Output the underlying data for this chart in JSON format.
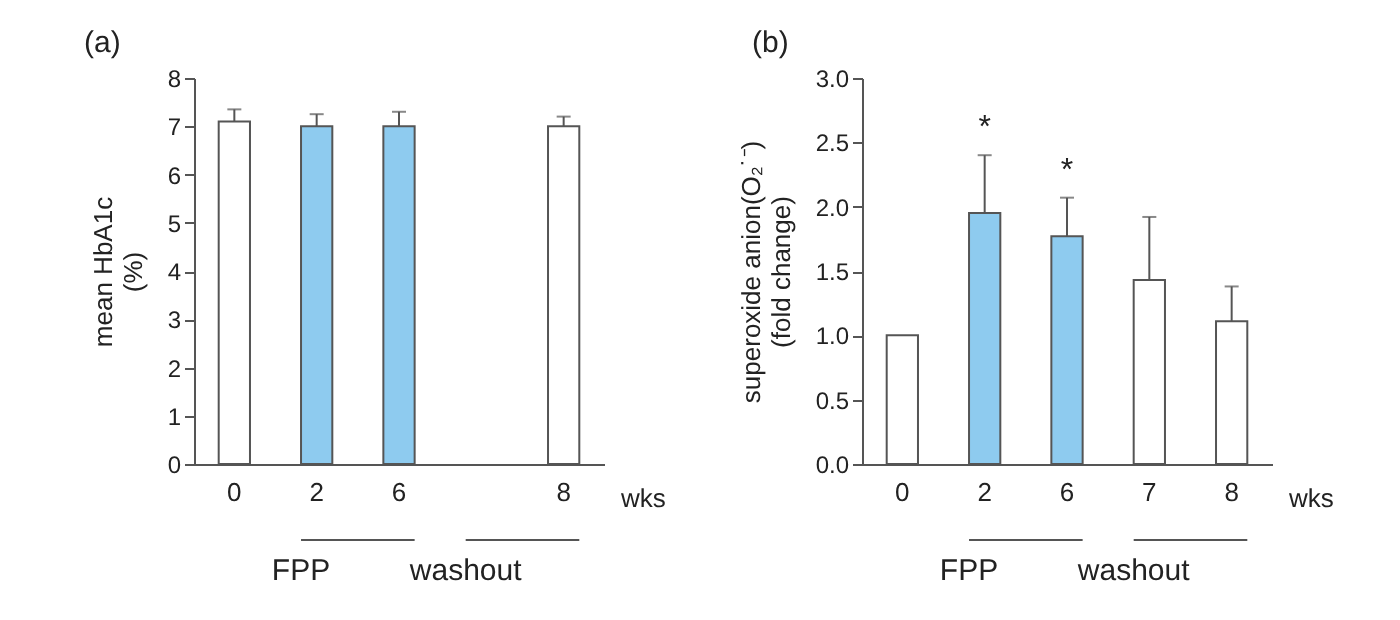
{
  "chart_data": [
    {
      "type": "bar",
      "title": "(a)",
      "xlabel": "wks",
      "ylabel": "mean HbA1c\n(%)",
      "categories": [
        "0",
        "2",
        "6",
        null,
        "8"
      ],
      "values": [
        7.1,
        7.0,
        7.0,
        null,
        7.0
      ],
      "colors": [
        "#ffffff",
        "#8ecbef",
        "#8ecbef",
        "#ffffff",
        "#ffffff"
      ],
      "errors": [
        [
          7.1,
          7.35
        ],
        [
          7.0,
          7.25
        ],
        [
          7.0,
          7.3
        ],
        null,
        [
          7.0,
          7.2
        ]
      ],
      "ylim": [
        0,
        8
      ],
      "yticks": [
        0,
        1,
        2,
        3,
        4,
        5,
        6,
        7,
        8
      ],
      "grid": false,
      "annotations": [
        "FPP",
        "washout"
      ]
    },
    {
      "type": "bar",
      "title": "(b)",
      "xlabel": "wks",
      "ylabel": "superoxide anion(O₂˙⁻)\n(fold change)",
      "categories": [
        "0",
        "2",
        "6",
        "7",
        "8"
      ],
      "values": [
        1.0,
        1.95,
        1.77,
        1.43,
        1.11
      ],
      "colors": [
        "#ffffff",
        "#8ecbef",
        "#8ecbef",
        "#ffffff",
        "#ffffff"
      ],
      "errors": [
        null,
        [
          1.95,
          2.4
        ],
        [
          1.77,
          2.07
        ],
        [
          1.43,
          1.92
        ],
        [
          1.11,
          1.38
        ]
      ],
      "ylim": [
        0,
        3.0
      ],
      "yticks": [
        {
          "value": 0,
          "label": "0.0"
        },
        {
          "value": 0.5,
          "label": "0.5"
        },
        {
          "value": 1,
          "label": "1.0"
        },
        {
          "value": 1.5,
          "label": "1.5"
        },
        {
          "value": 2,
          "label": "2.0"
        },
        {
          "value": 2.5,
          "label": "2.5"
        },
        {
          "value": 3,
          "label": "3.0"
        }
      ],
      "grid": false,
      "annotations": [
        "FPP",
        "washout",
        "*",
        "*"
      ]
    }
  ]
}
